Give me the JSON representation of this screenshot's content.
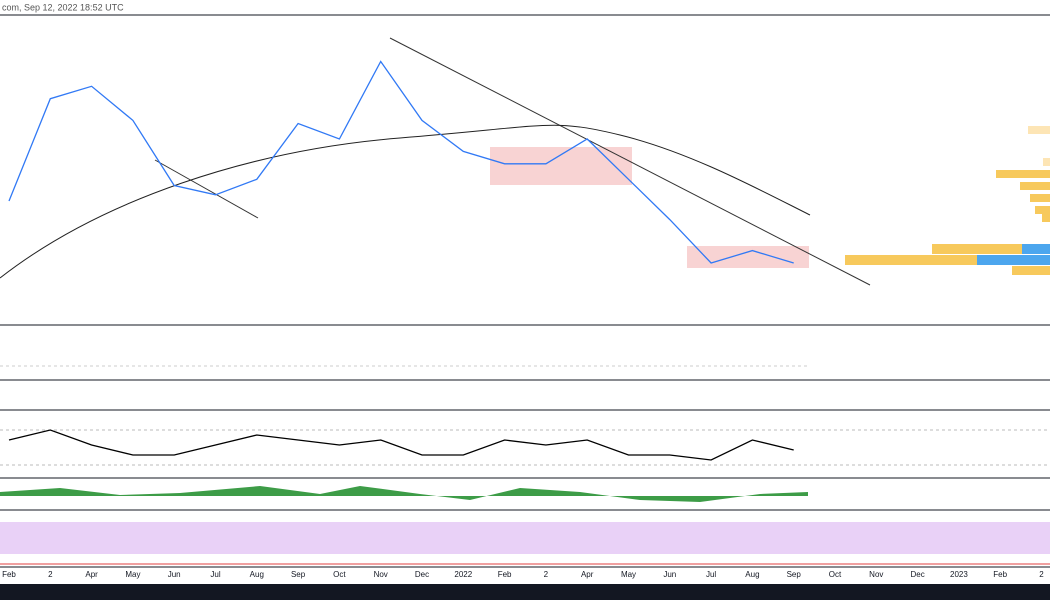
{
  "header": {
    "text": "com, Sep 12, 2022 18:52 UTC"
  },
  "chart_data": {
    "type": "line",
    "categories": [
      "Feb",
      "2",
      "Apr",
      "May",
      "Jun",
      "Jul",
      "Aug",
      "Sep",
      "Oct",
      "Nov",
      "Dec",
      "2022",
      "Feb",
      "2",
      "Apr",
      "May",
      "Jun",
      "Jul",
      "Aug",
      "Sep",
      "Oct",
      "Nov",
      "Dec",
      "2023",
      "Feb",
      "2"
    ],
    "series": [
      {
        "color": "#3179f5",
        "values": [
          40,
          73,
          77,
          66,
          45,
          42,
          47,
          65,
          60,
          85,
          66,
          56,
          52,
          52,
          60,
          47,
          34,
          20,
          24,
          20,
          null,
          null,
          null,
          null,
          null,
          null
        ]
      },
      {
        "color": "#000000",
        "axis": "y2",
        "values": [
          60,
          80,
          50,
          30,
          30,
          50,
          70,
          60,
          50,
          60,
          30,
          30,
          60,
          50,
          60,
          30,
          30,
          20,
          60,
          40,
          null,
          null,
          null,
          null,
          null,
          null
        ]
      }
    ],
    "ylim": [
      0,
      100
    ],
    "y2lim": [
      0,
      100
    ]
  }
}
